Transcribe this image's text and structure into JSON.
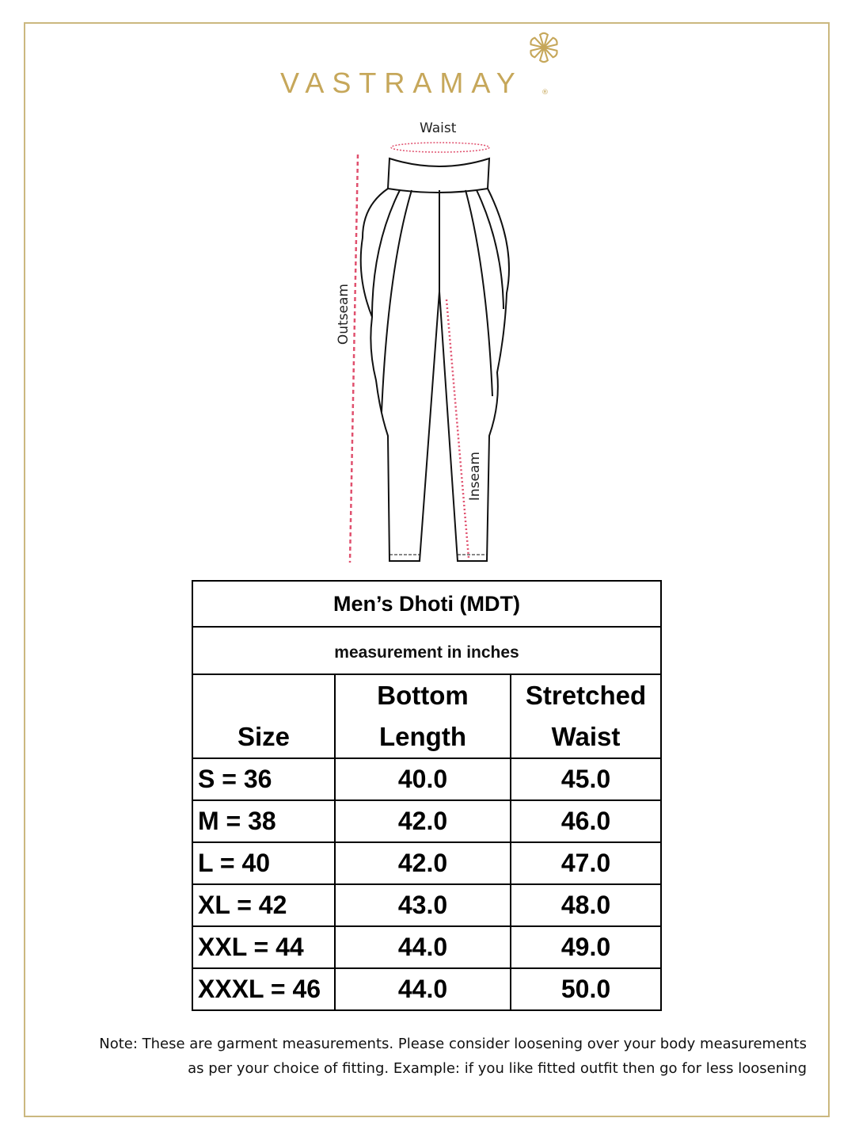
{
  "brand": {
    "name": "VASTRAMAY",
    "registered_mark": "®",
    "color": "#c6a75a"
  },
  "diagram": {
    "labels": {
      "waist": "Waist",
      "outseam": "Outseam",
      "inseam": "Inseam"
    },
    "measure_line_color": "#e0506e"
  },
  "table": {
    "title": "Men’s Dhoti (MDT)",
    "subtitle": "measurement in inches",
    "headers": {
      "size": "Size",
      "bottom_length_1": "Bottom",
      "bottom_length_2": "Length",
      "stretched_waist_1": "Stretched",
      "stretched_waist_2": "Waist"
    },
    "rows": [
      {
        "size": "S = 36",
        "bottom_length": "40.0",
        "stretched_waist": "45.0"
      },
      {
        "size": "M = 38",
        "bottom_length": "42.0",
        "stretched_waist": "46.0"
      },
      {
        "size": "L = 40",
        "bottom_length": "42.0",
        "stretched_waist": "47.0"
      },
      {
        "size": "XL = 42",
        "bottom_length": "43.0",
        "stretched_waist": "48.0"
      },
      {
        "size": "XXL = 44",
        "bottom_length": "44.0",
        "stretched_waist": "49.0"
      },
      {
        "size": "XXXL = 46",
        "bottom_length": "44.0",
        "stretched_waist": "50.0"
      }
    ]
  },
  "note": {
    "line1": "Note: These are garment measurements. Please consider loosening over your body measurements",
    "line2": "as per your choice of fitting. Example: if you like fitted outfit then go for less loosening"
  }
}
